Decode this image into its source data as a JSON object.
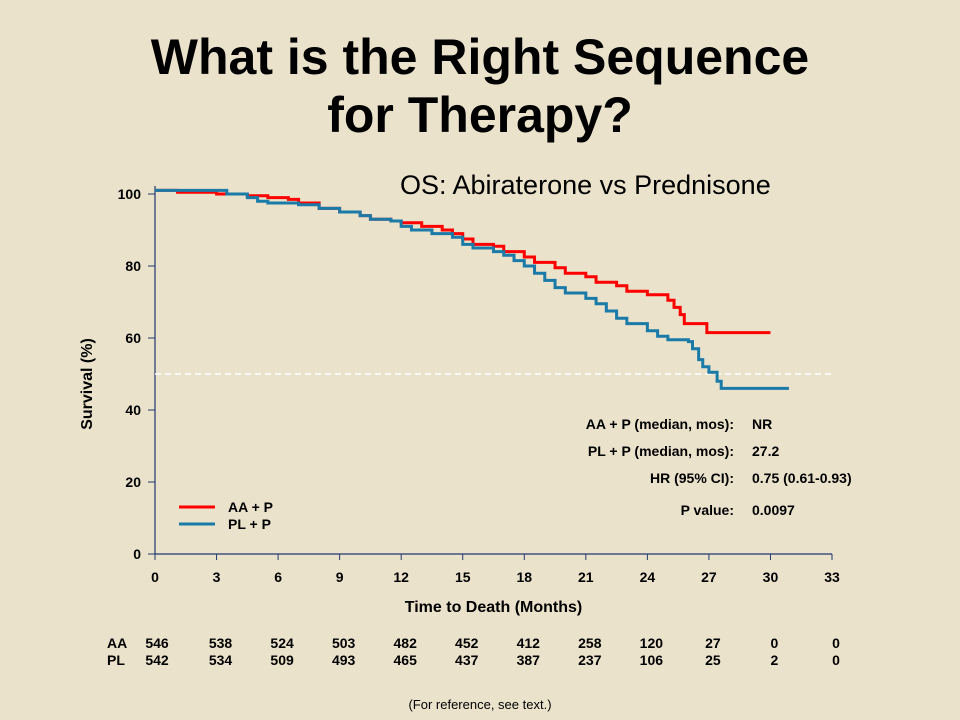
{
  "title_line1": "What is the Right Sequence",
  "title_line2": "for Therapy?",
  "footnote": "(For reference, see text.)",
  "chart_data": {
    "type": "line",
    "title": "OS: Abiraterone vs Prednisone",
    "xlabel": "Time to Death (Months)",
    "ylabel": "Survival (%)",
    "xlim": [
      0,
      33
    ],
    "ylim": [
      0,
      100
    ],
    "xticks": [
      "0",
      "3",
      "6",
      "9",
      "12",
      "15",
      "18",
      "21",
      "24",
      "27",
      "30",
      "33"
    ],
    "yticks": [
      "0",
      "20",
      "40",
      "60",
      "80",
      "100"
    ],
    "reference_line_y": 50,
    "legend_position": "bottom-left",
    "series": [
      {
        "name": "AA + P",
        "color": "#ff0000",
        "points": [
          [
            0,
            101
          ],
          [
            1.1,
            100.5
          ],
          [
            3,
            100
          ],
          [
            4.5,
            99.5
          ],
          [
            5.5,
            99
          ],
          [
            6.5,
            98.5
          ],
          [
            7,
            97.5
          ],
          [
            8,
            96
          ],
          [
            9,
            95
          ],
          [
            10,
            94
          ],
          [
            10.5,
            93
          ],
          [
            11.5,
            92.5
          ],
          [
            12,
            92
          ],
          [
            13,
            91
          ],
          [
            14,
            90
          ],
          [
            14.5,
            89
          ],
          [
            15,
            87.5
          ],
          [
            15.5,
            86
          ],
          [
            16.5,
            85.5
          ],
          [
            17,
            84
          ],
          [
            18,
            82.5
          ],
          [
            18.5,
            81
          ],
          [
            19.5,
            79.5
          ],
          [
            20,
            78
          ],
          [
            21,
            77
          ],
          [
            21.5,
            75.5
          ],
          [
            22.5,
            74.5
          ],
          [
            23,
            73
          ],
          [
            24,
            72
          ],
          [
            25,
            70.5
          ],
          [
            25.3,
            68.5
          ],
          [
            25.6,
            66.5
          ],
          [
            25.8,
            64
          ],
          [
            26.9,
            61.5
          ],
          [
            30,
            61.5
          ]
        ]
      },
      {
        "name": "PL + P",
        "color": "#1a7aa8",
        "points": [
          [
            0,
            101
          ],
          [
            2.7,
            101
          ],
          [
            3.5,
            100
          ],
          [
            4.5,
            99
          ],
          [
            5,
            98
          ],
          [
            5.5,
            97.5
          ],
          [
            7,
            97
          ],
          [
            8,
            96
          ],
          [
            9,
            95
          ],
          [
            10,
            94
          ],
          [
            10.5,
            93
          ],
          [
            11.5,
            92.5
          ],
          [
            12,
            91
          ],
          [
            12.5,
            90
          ],
          [
            13.5,
            89
          ],
          [
            14.5,
            88
          ],
          [
            15,
            86
          ],
          [
            15.5,
            85
          ],
          [
            16.5,
            84
          ],
          [
            17,
            83
          ],
          [
            17.5,
            81.5
          ],
          [
            18,
            80
          ],
          [
            18.5,
            78
          ],
          [
            19,
            76
          ],
          [
            19.5,
            74
          ],
          [
            20,
            72.5
          ],
          [
            21,
            71
          ],
          [
            21.5,
            69.5
          ],
          [
            22,
            67.5
          ],
          [
            22.5,
            65.5
          ],
          [
            23,
            64
          ],
          [
            24,
            62
          ],
          [
            24.5,
            60.5
          ],
          [
            25,
            59.5
          ],
          [
            26,
            59
          ],
          [
            26.2,
            57
          ],
          [
            26.5,
            54
          ],
          [
            26.7,
            52
          ],
          [
            27,
            50.5
          ],
          [
            27.4,
            48
          ],
          [
            27.6,
            46
          ],
          [
            30.9,
            46
          ]
        ]
      }
    ],
    "stats": [
      {
        "label": "AA + P (median, mos):",
        "value": "NR"
      },
      {
        "label": "PL + P (median, mos):",
        "value": "27.2"
      },
      {
        "label": "HR (95% CI):",
        "value": "0.75 (0.61-0.93)"
      },
      {
        "label": "P value:",
        "value": "0.0097"
      }
    ],
    "at_risk": [
      {
        "label": "AA",
        "values": [
          "546",
          "538",
          "524",
          "503",
          "482",
          "452",
          "412",
          "258",
          "120",
          "27",
          "0",
          "0"
        ]
      },
      {
        "label": "PL",
        "values": [
          "542",
          "534",
          "509",
          "493",
          "465",
          "437",
          "387",
          "237",
          "106",
          "25",
          "2",
          "0"
        ]
      }
    ]
  }
}
